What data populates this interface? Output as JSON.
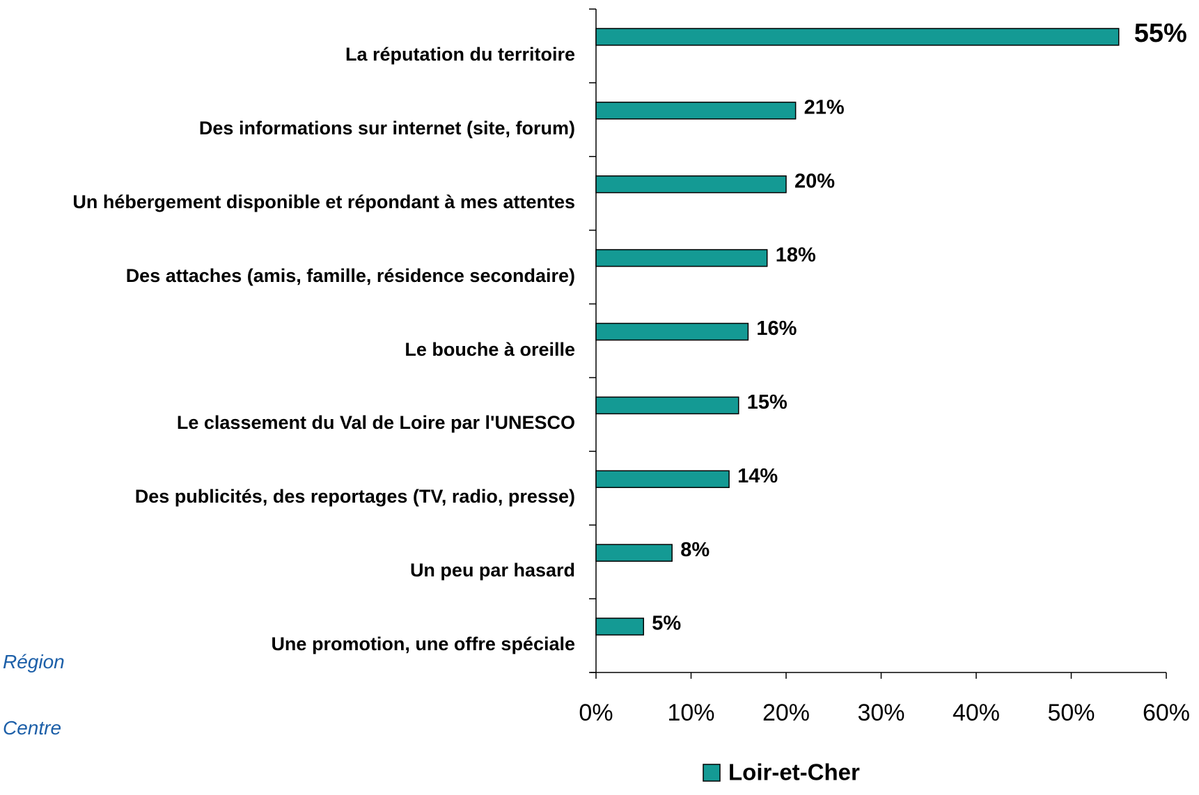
{
  "chart_data": {
    "type": "barh",
    "categories": [
      "La réputation du territoire",
      "Des informations sur internet (site, forum)",
      "Un hébergement disponible et répondant à mes attentes",
      "Des attaches (amis, famille, résidence secondaire)",
      "Le bouche à oreille",
      "Le classement du Val de Loire par l'UNESCO",
      "Des publicités, des reportages (TV, radio, presse)",
      "Un peu par hasard",
      "Une promotion, une offre spéciale"
    ],
    "series": [
      {
        "name": "Loir-et-Cher",
        "color": "#149a94",
        "values": [
          55,
          21,
          20,
          18,
          16,
          15,
          14,
          8,
          5
        ],
        "value_labels": [
          "55%",
          "21%",
          "20%",
          "18%",
          "16%",
          "15%",
          "14%",
          "8%",
          "5%"
        ]
      }
    ],
    "xlim": [
      0,
      60
    ],
    "xticks": [
      {
        "value": 0,
        "label": "0%"
      },
      {
        "value": 10,
        "label": "10%"
      },
      {
        "value": 20,
        "label": "20%"
      },
      {
        "value": 30,
        "label": "30%"
      },
      {
        "value": 40,
        "label": "40%"
      },
      {
        "value": 50,
        "label": "50%"
      },
      {
        "value": 60,
        "label": "60%"
      }
    ],
    "legend": "bottom"
  },
  "logo": {
    "line1": "Région",
    "line2": "Centre"
  }
}
